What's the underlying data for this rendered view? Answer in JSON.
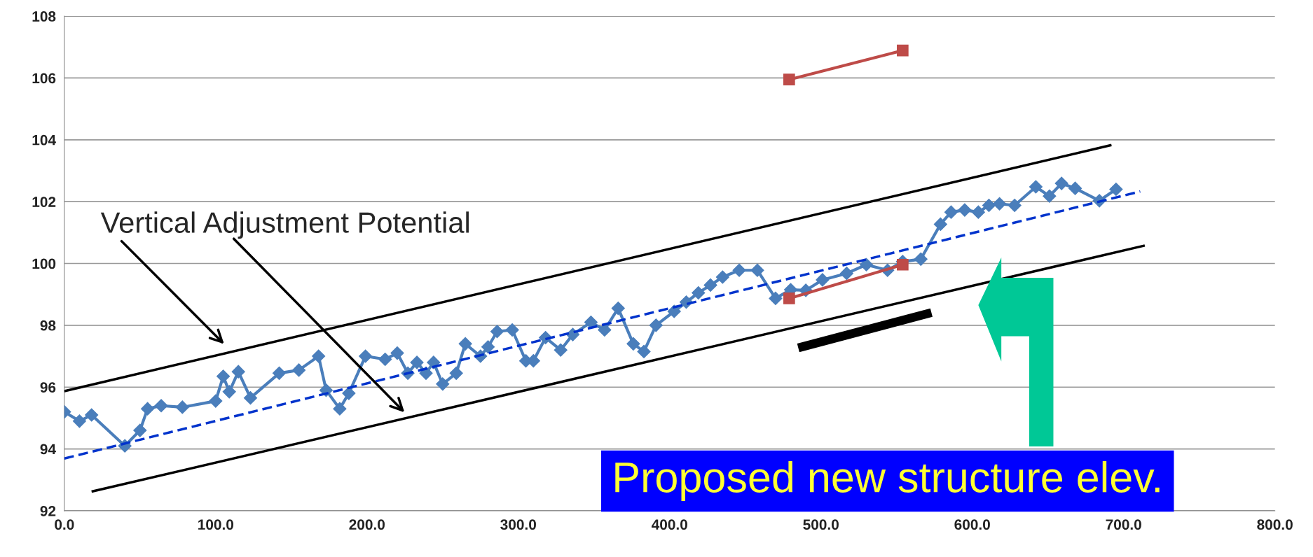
{
  "chart_data": {
    "type": "line",
    "xlim": [
      0,
      800
    ],
    "ylim": [
      92,
      108
    ],
    "xticks": [
      {
        "value": 0,
        "label": "0.0"
      },
      {
        "value": 100,
        "label": "100.0"
      },
      {
        "value": 200,
        "label": "200.0"
      },
      {
        "value": 300,
        "label": "300.0"
      },
      {
        "value": 400,
        "label": "400.0"
      },
      {
        "value": 500,
        "label": "500.0"
      },
      {
        "value": 600,
        "label": "600.0"
      },
      {
        "value": 700,
        "label": "700.0"
      },
      {
        "value": 800,
        "label": "800.0"
      }
    ],
    "yticks": [
      92,
      94,
      96,
      98,
      100,
      102,
      104,
      106,
      108
    ],
    "grid": "y",
    "legend": false,
    "series": [
      {
        "type": "line",
        "color": "#4a7ebb",
        "marker": "diamond",
        "line_style": "solid",
        "x": [
          0,
          10,
          18,
          40,
          50,
          55,
          64,
          78,
          100,
          105,
          109,
          115,
          123,
          142,
          155,
          168,
          173,
          182,
          188,
          199,
          212,
          220,
          227,
          233,
          239,
          244,
          250,
          259,
          265,
          275,
          280,
          286,
          296,
          305,
          310,
          318,
          328,
          336,
          348,
          357,
          366,
          376,
          383,
          391,
          403,
          411,
          419,
          427,
          435,
          446,
          458,
          470,
          480,
          490,
          501,
          517,
          530,
          544,
          554,
          566,
          579,
          586,
          595,
          604,
          611,
          618,
          628,
          642,
          651,
          659,
          668,
          684,
          695
        ],
        "values": [
          95.2,
          94.9,
          95.1,
          94.1,
          94.6,
          95.3,
          95.4,
          95.35,
          95.55,
          96.35,
          95.85,
          96.5,
          95.65,
          96.45,
          96.55,
          97.0,
          95.9,
          95.3,
          95.8,
          97.0,
          96.9,
          97.1,
          96.45,
          96.8,
          96.45,
          96.8,
          96.1,
          96.45,
          97.4,
          97.0,
          97.3,
          97.8,
          97.85,
          96.85,
          96.85,
          97.6,
          97.2,
          97.7,
          98.1,
          97.85,
          98.55,
          97.4,
          97.15,
          98.0,
          98.45,
          98.75,
          99.05,
          99.3,
          99.56,
          99.78,
          99.78,
          98.87,
          99.15,
          99.13,
          99.47,
          99.68,
          99.96,
          99.78,
          100.06,
          100.14,
          101.27,
          101.66,
          101.73,
          101.66,
          101.88,
          101.93,
          101.88,
          102.48,
          102.18,
          102.59,
          102.43,
          102.03,
          102.4
        ]
      },
      {
        "type": "line",
        "color": "#be4b48",
        "marker": "square",
        "line_style": "solid",
        "x": [
          479,
          554
        ],
        "values": [
          98.87,
          99.96
        ]
      },
      {
        "type": "line",
        "color": "#be4b48",
        "marker": "square",
        "line_style": "solid",
        "x": [
          479,
          554
        ],
        "values": [
          105.95,
          106.89
        ]
      },
      {
        "type": "line",
        "color": "#0033cc",
        "marker": "none",
        "line_style": "dashed",
        "x": [
          0,
          711
        ],
        "values": [
          93.69,
          102.33
        ]
      },
      {
        "type": "line",
        "color": "#000000",
        "marker": "none",
        "line_style": "solid",
        "x": [
          0,
          692
        ],
        "values": [
          95.87,
          103.83
        ]
      },
      {
        "type": "line",
        "color": "#000000",
        "marker": "none",
        "line_style": "solid",
        "x": [
          18,
          714
        ],
        "values": [
          92.62,
          100.58
        ]
      },
      {
        "type": "line",
        "color": "#000000",
        "marker": "none",
        "line_style": "solid",
        "x": [
          485,
          573
        ],
        "values": [
          97.27,
          98.41
        ]
      }
    ],
    "annotations": [
      "Vertical Adjustment Potential",
      "Proposed new structure elev."
    ]
  }
}
